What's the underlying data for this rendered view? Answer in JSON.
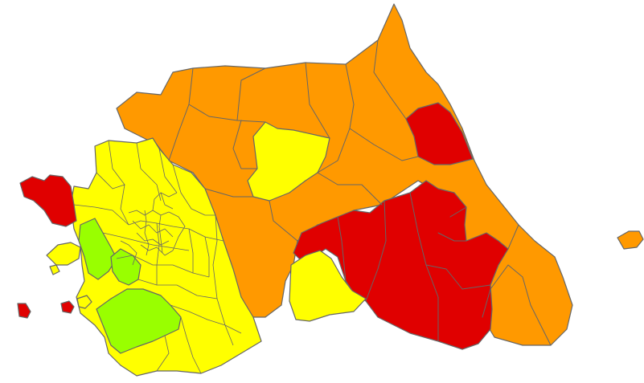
{
  "map": {
    "colors": {
      "red": "#e00000",
      "orange": "#ff9900",
      "yellow": "#ffff00",
      "lime": "#99ff00",
      "boundary": "#666666",
      "background": "#ffffff"
    },
    "legend": []
  }
}
